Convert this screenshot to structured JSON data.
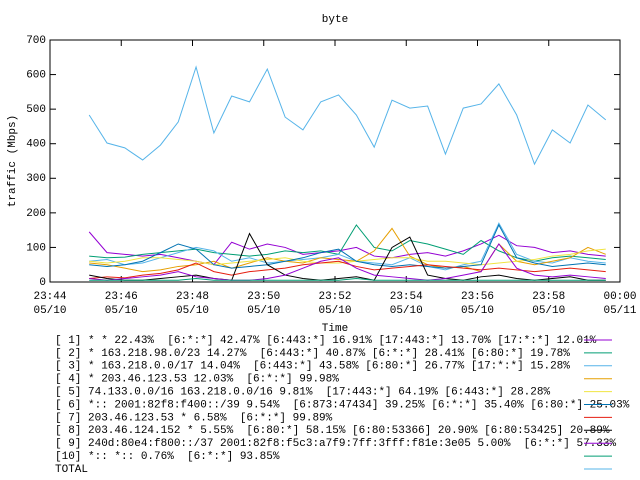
{
  "chart_data": {
    "type": "line",
    "title": "byte",
    "xlabel": "Time",
    "ylabel": "traffic (Mbps)",
    "x": [
      1.1,
      1.6,
      2.1,
      2.6,
      3.1,
      3.6,
      4.1,
      4.6,
      5.1,
      5.6,
      6.1,
      6.6,
      7.1,
      7.6,
      8.1,
      8.6,
      9.1,
      9.6,
      10.1,
      10.6,
      11.1,
      11.6,
      12.1,
      12.6,
      13.1,
      13.6,
      14.1,
      14.6,
      15.1,
      15.6
    ],
    "xlim": [
      0,
      16
    ],
    "xticks": [
      {
        "value": 0,
        "label": "23:44 05/10"
      },
      {
        "value": 2,
        "label": "23:46 05/10"
      },
      {
        "value": 4,
        "label": "23:48 05/10"
      },
      {
        "value": 6,
        "label": "23:50 05/10"
      },
      {
        "value": 8,
        "label": "23:52 05/10"
      },
      {
        "value": 10,
        "label": "23:54 05/10"
      },
      {
        "value": 12,
        "label": "23:56 05/10"
      },
      {
        "value": 14,
        "label": "23:58 05/10"
      },
      {
        "value": 16,
        "label": "00:00 05/11"
      }
    ],
    "ylim": [
      0,
      700
    ],
    "yticks": [
      0,
      100,
      200,
      300,
      400,
      500,
      600,
      700
    ],
    "grid": false,
    "series": [
      {
        "name": "[ 1] * * 22.43%  [6:*:*] 42.47% [6:443:*] 16.91% [17:443:*] 13.70% [17:*:*] 12.01%",
        "color": "#9400d3",
        "values": [
          145,
          85,
          80,
          75,
          80,
          70,
          60,
          50,
          115,
          95,
          110,
          100,
          80,
          85,
          90,
          100,
          75,
          70,
          80,
          85,
          75,
          90,
          110,
          135,
          105,
          100,
          85,
          90,
          80,
          75
        ]
      },
      {
        "name": "[ 2] * 163.218.98.0/23 14.27%  [6:443:*] 40.87% [6:*:*] 28.41% [6:80:*] 19.78%",
        "color": "#009e73",
        "values": [
          75,
          70,
          72,
          80,
          85,
          90,
          95,
          85,
          80,
          75,
          80,
          90,
          85,
          90,
          80,
          165,
          100,
          90,
          120,
          110,
          95,
          80,
          120,
          90,
          70,
          60,
          70,
          75,
          70,
          65
        ]
      },
      {
        "name": "[ 3] * 163.218.0.0/17 14.04%  [6:443:*] 43.58% [6:80:*] 26.77% [17:*:*] 15.28%",
        "color": "#56b4e9",
        "values": [
          60,
          65,
          50,
          55,
          70,
          85,
          100,
          90,
          60,
          70,
          55,
          60,
          65,
          70,
          80,
          60,
          55,
          50,
          70,
          45,
          35,
          50,
          60,
          170,
          80,
          60,
          55,
          70,
          60,
          55
        ]
      },
      {
        "name": "[ 4] * 203.46.123.53 12.03%  [6:*:*] 99.98%",
        "color": "#e69f00",
        "values": [
          55,
          50,
          40,
          30,
          35,
          45,
          50,
          60,
          40,
          55,
          70,
          60,
          55,
          70,
          65,
          60,
          90,
          155,
          75,
          50,
          40,
          45,
          30,
          110,
          60,
          50,
          60,
          70,
          100,
          80
        ]
      },
      {
        "name": "[ 5] 74.133.0.0/16 163.218.0.0/16 9.81%  [17:443:*] 64.19% [6:443:*] 28.28%",
        "color": "#f0e442",
        "values": [
          60,
          55,
          60,
          70,
          70,
          65,
          60,
          50,
          55,
          60,
          65,
          70,
          60,
          55,
          55,
          60,
          65,
          70,
          70,
          60,
          60,
          55,
          50,
          55,
          60,
          65,
          75,
          80,
          90,
          95
        ]
      },
      {
        "name": "[ 6] *:: 2001:82f8:f400::/39 9.54%  [6:873:47434] 39.25% [6:*:*] 35.40% [6:80:*] 25.03%",
        "color": "#0072b2",
        "values": [
          50,
          45,
          50,
          60,
          85,
          110,
          95,
          50,
          40,
          45,
          50,
          60,
          70,
          85,
          95,
          60,
          50,
          45,
          50,
          45,
          40,
          45,
          50,
          165,
          70,
          55,
          45,
          50,
          55,
          50
        ]
      },
      {
        "name": "[ 7] 203.46.123.53 * 6.58%  [6:*:*] 99.89%",
        "color": "#e51e10",
        "values": [
          10,
          15,
          12,
          20,
          25,
          35,
          55,
          30,
          20,
          30,
          35,
          40,
          50,
          55,
          60,
          45,
          35,
          40,
          45,
          50,
          45,
          40,
          35,
          40,
          35,
          30,
          35,
          40,
          35,
          30
        ]
      },
      {
        "name": "[ 8] 203.46.124.152 * 5.55%  [6:80:*] 58.15% [6:80:53366] 20.90% [6:80:53425] 20.89%",
        "color": "#000000",
        "values": [
          20,
          10,
          5,
          5,
          10,
          15,
          20,
          10,
          5,
          140,
          50,
          20,
          10,
          5,
          10,
          15,
          5,
          100,
          130,
          20,
          10,
          5,
          15,
          20,
          10,
          5,
          10,
          15,
          5,
          5
        ]
      },
      {
        "name": "[ 9] 240d:80e4:f800::/37 2001:82f8:f5c3:a7f9:7ff:3fff:f81e:3e05 5.00%  [6:*:*] 57.33%",
        "color": "#9400d3",
        "values": [
          10,
          5,
          10,
          15,
          20,
          30,
          15,
          10,
          5,
          5,
          10,
          20,
          40,
          60,
          70,
          40,
          20,
          15,
          10,
          5,
          10,
          20,
          30,
          110,
          40,
          20,
          15,
          20,
          15,
          10
        ]
      },
      {
        "name": "[10] *:: *:: 0.76%  [6:*:*] 93.85%",
        "color": "#009e73",
        "values": [
          5,
          5,
          5,
          5,
          5,
          5,
          10,
          5,
          5,
          5,
          5,
          5,
          5,
          5,
          5,
          10,
          5,
          5,
          5,
          5,
          5,
          5,
          5,
          5,
          5,
          5,
          5,
          5,
          5,
          5
        ]
      },
      {
        "name": "TOTAL",
        "color": "#56b4e9",
        "values": [
          483,
          402,
          388,
          353,
          396,
          463,
          622,
          431,
          538,
          521,
          616,
          477,
          440,
          521,
          541,
          483,
          390,
          526,
          503,
          509,
          370,
          503,
          515,
          573,
          483,
          341,
          440,
          402,
          512,
          469
        ]
      }
    ]
  }
}
